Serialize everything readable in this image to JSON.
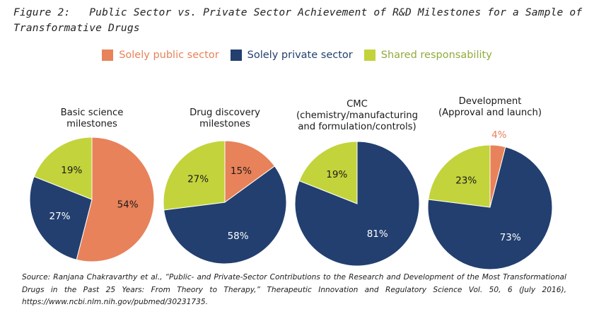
{
  "figure": {
    "title": "Figure 2:   Public Sector vs. Private Sector Achievement of R&D Milestones for a Sample of Transformative Drugs",
    "source": "Source: Ranjana Chakravarthy et al., “Public- and Private-Sector Contributions to the Research and Development of the Most Transformational Drugs in the Past 25 Years: From Theory to Therapy,” Therapeutic Innovation and Regulatory Science Vol. 50, 6 (July 2016), https://www.ncbi.nlm.nih.gov/pubmed/30231735."
  },
  "colors": {
    "public": "#e8825a",
    "private": "#223f6f",
    "shared": "#c3d33b",
    "public_text": "#e8825a",
    "private_text": "#223f6f",
    "shared_text": "#8fab3c"
  },
  "chart_data": {
    "type": "pie",
    "title": "Public Sector vs. Private Sector Achievement of R&D Milestones for a Sample of Transformative Drugs",
    "legend": {
      "placement": "top-center",
      "entries": [
        {
          "key": "public",
          "label": "Solely public sector"
        },
        {
          "key": "private",
          "label": "Solely private sector"
        },
        {
          "key": "shared",
          "label": "Shared responsability"
        }
      ]
    },
    "pies": [
      {
        "title_lines": [
          "Basic science",
          "milestones"
        ],
        "slices": [
          {
            "key": "public",
            "value": 54,
            "label": "54%"
          },
          {
            "key": "private",
            "value": 27,
            "label": "27%"
          },
          {
            "key": "shared",
            "value": 19,
            "label": "19%"
          }
        ]
      },
      {
        "title_lines": [
          "Drug discovery",
          "milestones"
        ],
        "slices": [
          {
            "key": "public",
            "value": 15,
            "label": "15%"
          },
          {
            "key": "private",
            "value": 58,
            "label": "58%"
          },
          {
            "key": "shared",
            "value": 27,
            "label": "27%"
          }
        ]
      },
      {
        "title_lines": [
          "CMC",
          "(chemistry/manufacturing",
          "and formulation/controls)"
        ],
        "slices": [
          {
            "key": "public",
            "value": 0,
            "label": ""
          },
          {
            "key": "private",
            "value": 81,
            "label": "81%"
          },
          {
            "key": "shared",
            "value": 19,
            "label": "19%"
          }
        ]
      },
      {
        "title_lines": [
          "Development",
          "(Approval and launch)"
        ],
        "slices": [
          {
            "key": "public",
            "value": 4,
            "label": "4%",
            "label_outside": true
          },
          {
            "key": "private",
            "value": 73,
            "label": "73%"
          },
          {
            "key": "shared",
            "value": 23,
            "label": "23%"
          }
        ]
      }
    ]
  }
}
